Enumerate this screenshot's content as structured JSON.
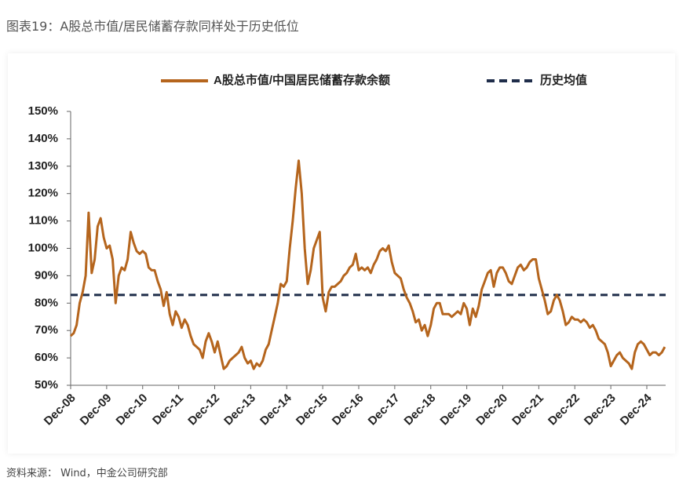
{
  "header": {
    "title": "图表19：A股总市值/居民储蓄存款同样处于历史低位"
  },
  "footer": {
    "source": "资料来源： Wind，中金公司研究部"
  },
  "chart_data": {
    "type": "line",
    "categories": [
      "Dec-08",
      null,
      null,
      null,
      null,
      null,
      null,
      null,
      null,
      null,
      null,
      null,
      "Dec-09",
      null,
      null,
      null,
      null,
      null,
      null,
      null,
      null,
      null,
      null,
      null,
      "Dec-10",
      null,
      null,
      null,
      null,
      null,
      null,
      null,
      null,
      null,
      null,
      null,
      "Dec-11",
      null,
      null,
      null,
      null,
      null,
      null,
      null,
      null,
      null,
      null,
      null,
      "Dec-12",
      null,
      null,
      null,
      null,
      null,
      null,
      null,
      null,
      null,
      null,
      null,
      "Dec-13",
      null,
      null,
      null,
      null,
      null,
      null,
      null,
      null,
      null,
      null,
      null,
      "Dec-14",
      null,
      null,
      null,
      null,
      null,
      null,
      null,
      null,
      null,
      null,
      null,
      "Dec-15",
      null,
      null,
      null,
      null,
      null,
      null,
      null,
      null,
      null,
      null,
      null,
      "Dec-16",
      null,
      null,
      null,
      null,
      null,
      null,
      null,
      null,
      null,
      null,
      null,
      "Dec-17",
      null,
      null,
      null,
      null,
      null,
      null,
      null,
      null,
      null,
      null,
      null,
      "Dec-18",
      null,
      null,
      null,
      null,
      null,
      null,
      null,
      null,
      null,
      null,
      null,
      "Dec-19",
      null,
      null,
      null,
      null,
      null,
      null,
      null,
      null,
      null,
      null,
      null,
      "Dec-20",
      null,
      null,
      null,
      null,
      null,
      null,
      null,
      null,
      null,
      null,
      null,
      "Dec-21",
      null,
      null,
      null,
      null,
      null,
      null,
      null,
      null,
      null,
      null,
      null,
      "Dec-22",
      null,
      null,
      null,
      null,
      null,
      null,
      null,
      null,
      null,
      null,
      null,
      "Dec-23",
      null,
      null,
      null,
      null,
      null,
      null,
      null,
      null,
      null,
      null,
      null,
      "Dec-24",
      null,
      null,
      null,
      null,
      null,
      null
    ],
    "series": [
      {
        "name": "A股总市值/中国居民储蓄存款余额",
        "color": "#b5651d",
        "values": [
          68,
          69,
          72,
          80,
          84,
          90,
          113,
          91,
          96,
          108,
          111,
          104,
          100,
          101,
          96,
          80,
          90,
          93,
          92,
          96,
          106,
          102,
          99,
          98,
          99,
          98,
          93,
          92,
          92,
          88,
          85,
          79,
          84,
          76,
          72,
          77,
          75,
          71,
          74,
          72,
          68,
          65,
          64,
          63,
          60,
          66,
          69,
          66,
          62,
          66,
          61,
          56,
          57,
          59,
          60,
          61,
          62,
          64,
          60,
          58,
          59,
          56,
          58,
          57,
          59,
          63,
          65,
          70,
          75,
          80,
          87,
          86,
          88,
          100,
          110,
          122,
          132,
          120,
          100,
          87,
          92,
          100,
          103,
          106,
          82,
          77,
          84,
          86,
          86,
          87,
          88,
          90,
          91,
          93,
          94,
          98,
          92,
          93,
          92,
          93,
          91,
          94,
          96,
          99,
          100,
          99,
          101,
          95,
          91,
          90,
          89,
          85,
          82,
          80,
          77,
          73,
          74,
          70,
          72,
          68,
          72,
          78,
          80,
          80,
          76,
          76,
          76,
          75,
          76,
          77,
          76,
          80,
          78,
          72,
          78,
          75,
          79,
          85,
          88,
          91,
          92,
          86,
          91,
          93,
          93,
          91,
          88,
          87,
          90,
          93,
          94,
          92,
          93,
          95,
          96,
          96,
          89,
          85,
          81,
          76,
          77,
          81,
          83,
          81,
          77,
          72,
          73,
          75,
          74,
          74,
          73,
          74,
          73,
          71,
          72,
          70,
          67,
          66,
          65,
          62,
          57,
          59,
          61,
          62,
          60,
          59,
          58,
          56,
          62,
          65,
          66,
          65,
          63,
          61,
          62,
          62,
          61,
          62,
          64
        ]
      }
    ],
    "reference_line": {
      "name": "历史均值",
      "value": 83,
      "color": "#1f2d4a"
    },
    "ylim": [
      50,
      150
    ],
    "yticks": [
      {
        "value": 50,
        "label": "50%"
      },
      {
        "value": 60,
        "label": "60%"
      },
      {
        "value": 70,
        "label": "70%"
      },
      {
        "value": 80,
        "label": "80%"
      },
      {
        "value": 90,
        "label": "90%"
      },
      {
        "value": 100,
        "label": "100%"
      },
      {
        "value": 110,
        "label": "110%"
      },
      {
        "value": 120,
        "label": "120%"
      },
      {
        "value": 130,
        "label": "130%"
      },
      {
        "value": 140,
        "label": "140%"
      },
      {
        "value": 150,
        "label": "150%"
      }
    ],
    "grid": false
  }
}
